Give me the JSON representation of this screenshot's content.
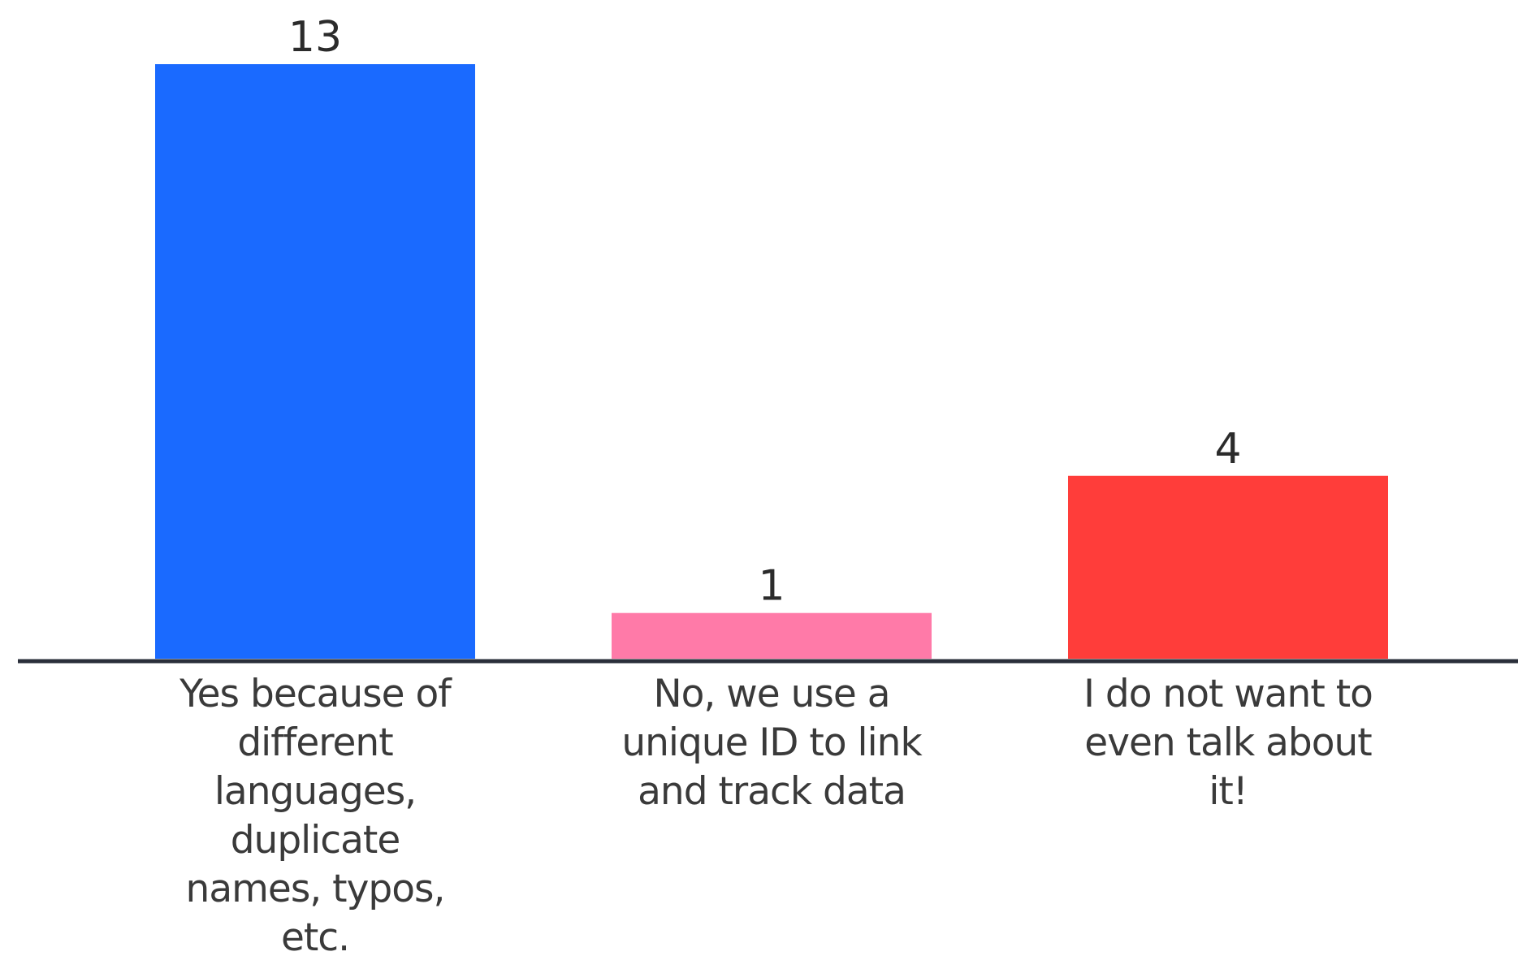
{
  "chart_data": {
    "type": "bar",
    "categories": [
      "Yes because of different languages, duplicate names, typos, etc.",
      "No, we use a unique ID to link and track data",
      "I do not want to even talk about it!"
    ],
    "category_lines": [
      [
        "Yes because of",
        "different",
        "languages,",
        "duplicate",
        "names, typos,",
        "etc."
      ],
      [
        "No, we use a",
        "unique ID to link",
        "and track data"
      ],
      [
        "I do not want to",
        "even talk about",
        "it!"
      ]
    ],
    "values": [
      13,
      1,
      4
    ],
    "colors": [
      "#1a6aff",
      "#ff7aa8",
      "#ff3d3a"
    ],
    "axis_color": "#2a2f3a",
    "title": "",
    "xlabel": "",
    "ylabel": "",
    "ylim": [
      0,
      13
    ],
    "grid": false,
    "data_labels": true,
    "legend": "none"
  }
}
